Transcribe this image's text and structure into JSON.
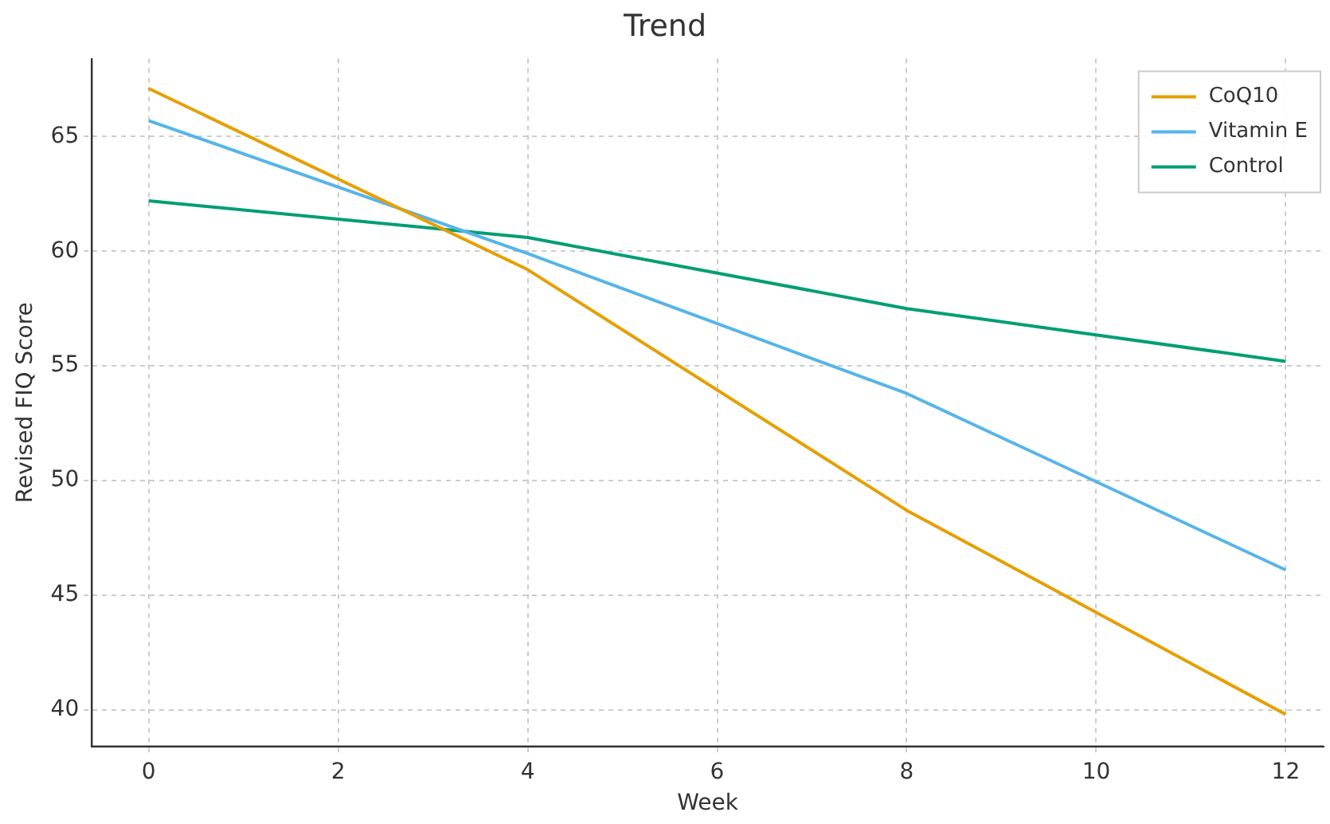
{
  "chart_data": {
    "type": "line",
    "title": "Trend",
    "xlabel": "Week",
    "ylabel": "Revised FIQ Score",
    "x": [
      0,
      4,
      8,
      12
    ],
    "series": [
      {
        "name": "CoQ10",
        "color": "#e69f00",
        "values": [
          67.1,
          59.2,
          48.7,
          39.8
        ]
      },
      {
        "name": "Vitamin E",
        "color": "#56b4e9",
        "values": [
          65.7,
          59.9,
          53.8,
          46.1
        ]
      },
      {
        "name": "Control",
        "color": "#009e73",
        "values": [
          62.2,
          60.6,
          57.5,
          55.2
        ]
      }
    ],
    "xlim": [
      -0.6,
      12.4
    ],
    "xticks": [
      0,
      2,
      4,
      6,
      8,
      10,
      12
    ],
    "ylim": [
      38.4,
      68.4
    ],
    "yticks": [
      40,
      45,
      50,
      55,
      60,
      65
    ],
    "grid": true,
    "legend": "top right",
    "marker": "none",
    "line_style": "solid"
  }
}
